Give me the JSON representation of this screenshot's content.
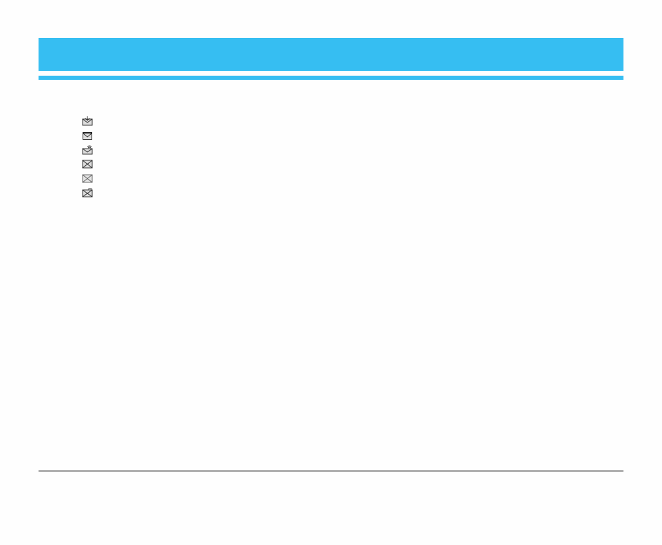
{
  "colors": {
    "header": "#36bef2",
    "footer_rule": "#b0b0b0"
  },
  "icons": [
    {
      "name": "inbox-message-icon"
    },
    {
      "name": "inbox-message-selected-icon"
    },
    {
      "name": "message-with-alert-icon"
    },
    {
      "name": "message-envelope-icon"
    },
    {
      "name": "message-envelope-read-icon"
    },
    {
      "name": "envelope-alert-icon"
    }
  ]
}
